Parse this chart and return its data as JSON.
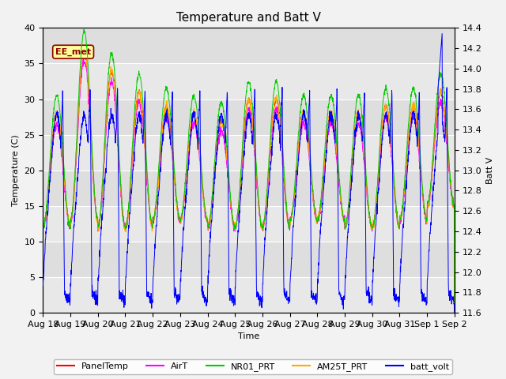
{
  "title": "Temperature and Batt V",
  "xlabel": "Time",
  "ylabel_left": "Temperature (C)",
  "ylabel_right": "Batt V",
  "annotation": "EE_met",
  "ylim_left": [
    0,
    40
  ],
  "ylim_right": [
    11.6,
    14.4
  ],
  "xlim": [
    0,
    15
  ],
  "legend_entries": [
    "PanelTemp",
    "AirT",
    "NR01_PRT",
    "AM25T_PRT",
    "batt_volt"
  ],
  "legend_colors": [
    "#ff0000",
    "#ff00ff",
    "#00cc00",
    "#ffaa00",
    "#0000ff"
  ],
  "xtick_labels": [
    "Aug 18",
    "Aug 19",
    "Aug 20",
    "Aug 21",
    "Aug 22",
    "Aug 23",
    "Aug 24",
    "Aug 25",
    "Aug 26",
    "Aug 27",
    "Aug 28",
    "Aug 29",
    "Aug 30",
    "Aug 31",
    "Sep 1",
    "Sep 2"
  ],
  "xtick_positions": [
    0,
    1,
    2,
    3,
    4,
    5,
    6,
    7,
    8,
    9,
    10,
    11,
    12,
    13,
    14,
    15
  ],
  "yticks_left": [
    0,
    5,
    10,
    15,
    20,
    25,
    30,
    35,
    40
  ],
  "yticks_right": [
    11.6,
    11.8,
    12.0,
    12.2,
    12.4,
    12.6,
    12.8,
    13.0,
    13.2,
    13.4,
    13.6,
    13.8,
    14.0,
    14.2,
    14.4
  ],
  "num_days": 15,
  "samples_per_day": 144,
  "title_fontsize": 11,
  "label_fontsize": 8,
  "tick_fontsize": 8,
  "legend_fontsize": 8
}
